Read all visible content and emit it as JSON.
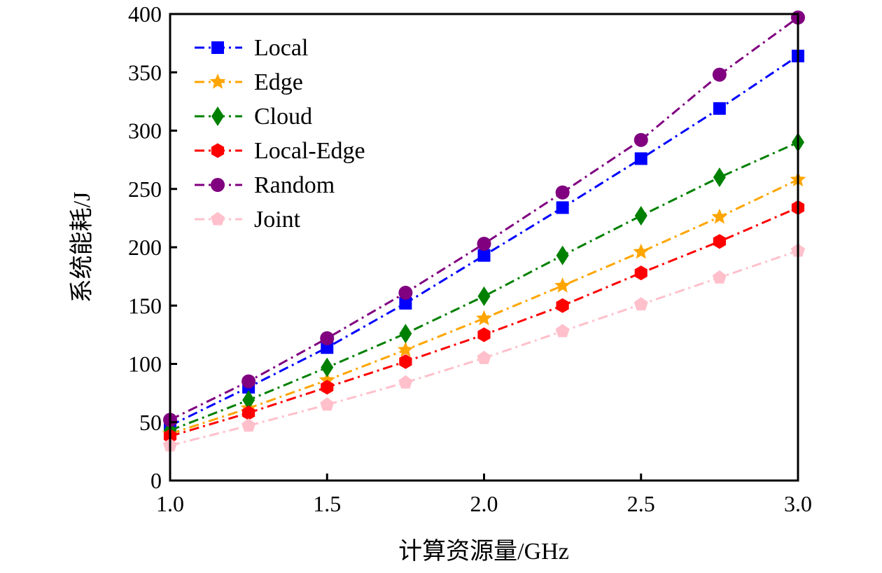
{
  "chart_data": {
    "type": "line",
    "xlabel": "计算资源量/GHz",
    "ylabel": "系统能耗/J",
    "xlim": [
      1.0,
      3.0
    ],
    "ylim": [
      0,
      400
    ],
    "xticks": [
      "1.0",
      "1.5",
      "2.0",
      "2.5",
      "3.0"
    ],
    "yticks": [
      "0",
      "50",
      "100",
      "150",
      "200",
      "250",
      "300",
      "350",
      "400"
    ],
    "grid": false,
    "legend_position": "top-left",
    "x": [
      1.0,
      1.25,
      1.5,
      1.75,
      2.0,
      2.25,
      2.5,
      2.75,
      3.0
    ],
    "series": [
      {
        "name": "Local",
        "color": "#0000ff",
        "marker": "square",
        "values": [
          47,
          80,
          114,
          152,
          193,
          234,
          276,
          319,
          364
        ]
      },
      {
        "name": "Edge",
        "color": "#ffa500",
        "marker": "star",
        "values": [
          40,
          62,
          86,
          112,
          139,
          167,
          196,
          226,
          258
        ]
      },
      {
        "name": "Cloud",
        "color": "#008000",
        "marker": "diamond",
        "values": [
          43,
          69,
          97,
          126,
          158,
          193,
          227,
          260,
          290
        ]
      },
      {
        "name": "Local-Edge",
        "color": "#ff0000",
        "marker": "hexagon",
        "values": [
          38,
          58,
          80,
          102,
          125,
          150,
          178,
          205,
          234
        ]
      },
      {
        "name": "Random",
        "color": "#800080",
        "marker": "circle",
        "values": [
          52,
          85,
          122,
          161,
          203,
          247,
          292,
          348,
          397
        ]
      },
      {
        "name": "Joint",
        "color": "#ffc0cb",
        "marker": "pentagon",
        "values": [
          30,
          47,
          65,
          84,
          105,
          128,
          151,
          174,
          197
        ]
      }
    ]
  }
}
